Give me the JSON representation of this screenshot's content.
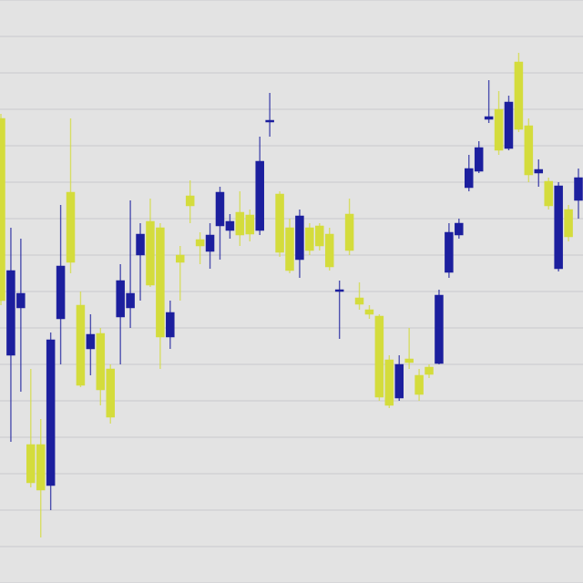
{
  "chart_data": {
    "type": "candlestick",
    "up_color": "#1c1f9e",
    "down_color": "#d4dc3c",
    "open": [
      510,
      250,
      302,
      152,
      152,
      107,
      290,
      429,
      305,
      257,
      274,
      235,
      292,
      302,
      360,
      397,
      390,
      270,
      360,
      425,
      377,
      364,
      392,
      387,
      407,
      404,
      387,
      506,
      427,
      390,
      355,
      390,
      392,
      383,
      320,
      405,
      313,
      300,
      293,
      245,
      203,
      246,
      228,
      237,
      241,
      341,
      382,
      434,
      452,
      509,
      520,
      477,
      572,
      502,
      450,
      441,
      345,
      410,
      420
    ],
    "high": [
      515,
      390,
      378,
      235,
      180,
      275,
      415,
      510,
      320,
      295,
      280,
      240,
      350,
      420,
      395,
      422,
      395,
      310,
      370,
      442,
      385,
      395,
      435,
      405,
      430,
      410,
      490,
      538,
      430,
      400,
      410,
      395,
      395,
      390,
      332,
      422,
      330,
      305,
      295,
      250,
      250,
      280,
      235,
      240,
      322,
      395,
      400,
      470,
      485,
      552,
      540,
      535,
      582,
      510,
      465,
      445,
      440,
      415,
      455
    ],
    "low": [
      305,
      155,
      210,
      105,
      50,
      80,
      240,
      340,
      215,
      228,
      195,
      175,
      240,
      280,
      310,
      325,
      235,
      257,
      310,
      395,
      350,
      345,
      355,
      378,
      370,
      375,
      382,
      490,
      358,
      340,
      335,
      360,
      365,
      343,
      268,
      360,
      300,
      290,
      200,
      192,
      200,
      235,
      200,
      225,
      240,
      335,
      378,
      430,
      450,
      505,
      470,
      475,
      495,
      440,
      435,
      410,
      342,
      375,
      400
    ],
    "close": [
      310,
      343,
      318,
      110,
      102,
      267,
      348,
      352,
      217,
      273,
      212,
      182,
      332,
      318,
      383,
      327,
      270,
      297,
      352,
      414,
      370,
      382,
      429,
      397,
      382,
      383,
      463,
      508,
      363,
      343,
      403,
      365,
      370,
      347,
      322,
      365,
      306,
      295,
      204,
      195,
      240,
      242,
      207,
      229,
      316,
      385,
      395,
      455,
      478,
      512,
      475,
      528,
      498,
      448,
      454,
      414,
      436,
      380,
      445
    ],
    "ylim": [
      0,
      640
    ],
    "yticks": [
      0,
      40,
      80,
      120,
      160,
      200,
      240,
      280,
      320,
      360,
      400,
      440,
      480,
      520,
      560,
      600,
      640
    ],
    "grid": true
  }
}
